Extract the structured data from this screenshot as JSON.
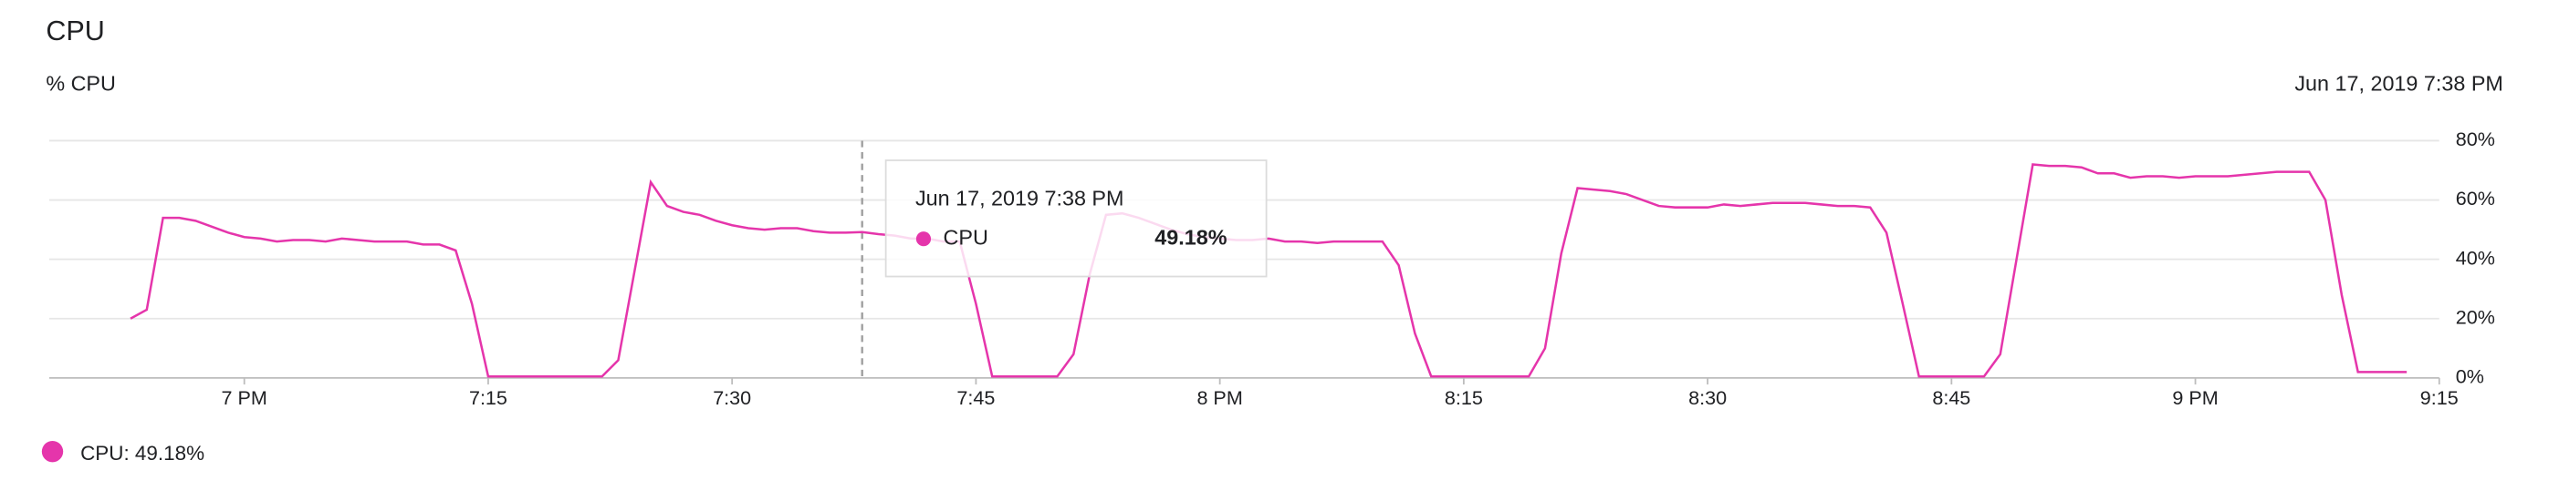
{
  "chart_data": {
    "type": "line",
    "title": "CPU",
    "y_label": "% CPU",
    "timestamp": "Jun 17, 2019 7:38 PM",
    "x": [
      "18:53",
      "18:54",
      "18:55",
      "18:56",
      "18:57",
      "18:58",
      "18:59",
      "19:00",
      "19:01",
      "19:02",
      "19:03",
      "19:04",
      "19:05",
      "19:06",
      "19:07",
      "19:08",
      "19:09",
      "19:10",
      "19:11",
      "19:12",
      "19:13",
      "19:14",
      "19:15",
      "19:16",
      "19:17",
      "19:18",
      "19:19",
      "19:20",
      "19:21",
      "19:22",
      "19:23",
      "19:24",
      "19:25",
      "19:26",
      "19:27",
      "19:28",
      "19:29",
      "19:30",
      "19:31",
      "19:32",
      "19:33",
      "19:34",
      "19:35",
      "19:36",
      "19:37",
      "19:38",
      "19:39",
      "19:40",
      "19:41",
      "19:42",
      "19:43",
      "19:44",
      "19:45",
      "19:46",
      "19:47",
      "19:48",
      "19:49",
      "19:50",
      "19:51",
      "19:52",
      "19:53",
      "19:54",
      "19:55",
      "19:56",
      "19:57",
      "19:58",
      "19:59",
      "20:00",
      "20:01",
      "20:02",
      "20:03",
      "20:04",
      "20:05",
      "20:06",
      "20:07",
      "20:08",
      "20:09",
      "20:10",
      "20:11",
      "20:12",
      "20:13",
      "20:14",
      "20:15",
      "20:16",
      "20:17",
      "20:18",
      "20:19",
      "20:20",
      "20:21",
      "20:22",
      "20:23",
      "20:24",
      "20:25",
      "20:26",
      "20:27",
      "20:28",
      "20:29",
      "20:30",
      "20:31",
      "20:32",
      "20:33",
      "20:34",
      "20:35",
      "20:36",
      "20:37",
      "20:38",
      "20:39",
      "20:40",
      "20:41",
      "20:42",
      "20:43",
      "20:44",
      "20:45",
      "20:46",
      "20:47",
      "20:48",
      "20:49",
      "20:50",
      "20:51",
      "20:52",
      "20:53",
      "20:54",
      "20:55",
      "20:56",
      "20:57",
      "20:58",
      "20:59",
      "21:00",
      "21:01",
      "21:02",
      "21:03",
      "21:04",
      "21:05",
      "21:06",
      "21:07",
      "21:08",
      "21:09",
      "21:10",
      "21:11",
      "21:12",
      "21:13"
    ],
    "series": [
      {
        "name": "CPU",
        "color": "#e535ab",
        "values": [
          20,
          23,
          54,
          54,
          53,
          51,
          49,
          47.5,
          47,
          46,
          46.5,
          46.5,
          46,
          47,
          46.5,
          46,
          46,
          46,
          45,
          45,
          43,
          25,
          0.5,
          0.5,
          0.5,
          0.5,
          0.5,
          0.5,
          0.5,
          0.5,
          6,
          36,
          66,
          58,
          56,
          55,
          53,
          51.5,
          50.5,
          50,
          50.5,
          50.5,
          49.5,
          49,
          49,
          49.18,
          48.5,
          48,
          47,
          47,
          46,
          46,
          25,
          0.5,
          0.5,
          0.5,
          0.5,
          0.5,
          8,
          35,
          55,
          55.5,
          54,
          52,
          50,
          48.5,
          47.5,
          47,
          46.5,
          46.5,
          47,
          46,
          46,
          45.5,
          46,
          46,
          46,
          46,
          38,
          15,
          0.5,
          0.5,
          0.5,
          0.5,
          0.5,
          0.5,
          0.5,
          10,
          42,
          64,
          63.5,
          63,
          62,
          60,
          58,
          57.5,
          57.5,
          57.5,
          58.5,
          58,
          58.5,
          59,
          59,
          59,
          58.5,
          58,
          58,
          57.5,
          49,
          25,
          0.5,
          0.5,
          0.5,
          0.5,
          0.5,
          8,
          40,
          72,
          71.5,
          71.5,
          71,
          69,
          69,
          67.5,
          68,
          68,
          67.5,
          68,
          68,
          68,
          68.5,
          69,
          69.5,
          69.5,
          69.5,
          60,
          28,
          2,
          2,
          2,
          2
        ]
      }
    ],
    "legend_label": "CPU: 49.18%",
    "tooltip": {
      "x": "19:38",
      "value": 49.18,
      "value_label": "49.18%"
    },
    "xlim": [
      "18:48",
      "21:15"
    ],
    "xticks": [
      {
        "value": "19:00",
        "label": "7 PM"
      },
      {
        "value": "19:15",
        "label": "7:15"
      },
      {
        "value": "19:30",
        "label": "7:30"
      },
      {
        "value": "19:45",
        "label": "7:45"
      },
      {
        "value": "20:00",
        "label": "8 PM"
      },
      {
        "value": "20:15",
        "label": "8:15"
      },
      {
        "value": "20:30",
        "label": "8:30"
      },
      {
        "value": "20:45",
        "label": "8:45"
      },
      {
        "value": "21:00",
        "label": "9 PM"
      },
      {
        "value": "21:15",
        "label": "9:15"
      }
    ],
    "ylim": [
      0,
      80
    ],
    "yticks": [
      {
        "value": 0,
        "label": "0%"
      },
      {
        "value": 20,
        "label": "20%"
      },
      {
        "value": 40,
        "label": "40%"
      },
      {
        "value": 60,
        "label": "60%"
      },
      {
        "value": 80,
        "label": "80%"
      }
    ],
    "grid": true
  }
}
